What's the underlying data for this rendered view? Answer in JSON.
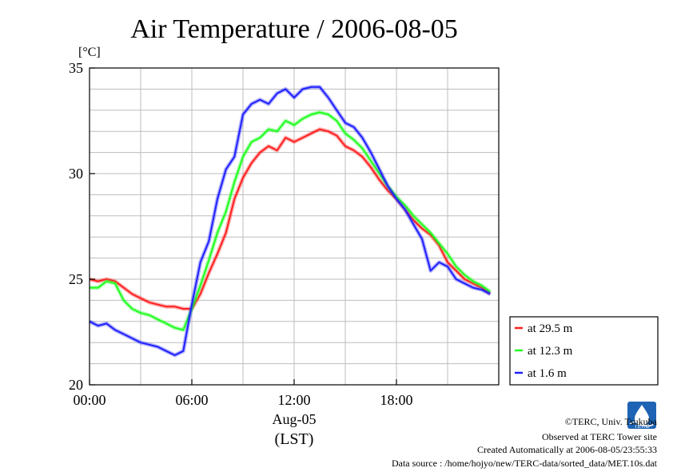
{
  "chart_data": {
    "type": "line",
    "title": "Air Temperature / 2006-08-05",
    "y_unit_label": "[°C]",
    "ylim": [
      20,
      35
    ],
    "yticks": [
      20,
      25,
      30,
      35
    ],
    "xlim": [
      0,
      24
    ],
    "xticks": [
      {
        "hour": 0,
        "label": "00:00"
      },
      {
        "hour": 6,
        "label": "06:00"
      },
      {
        "hour": 12,
        "label": "12:00"
      },
      {
        "hour": 18,
        "label": "18:00"
      }
    ],
    "x_date_label": "Aug-05",
    "x_axis_label": "(LST)",
    "grid": true,
    "legend_position": "right",
    "series": [
      {
        "name": "at 29.5 m",
        "color": "#ff2020",
        "x": [
          0,
          0.5,
          1,
          1.5,
          2,
          2.5,
          3,
          3.5,
          4,
          4.5,
          5,
          5.5,
          6,
          6.5,
          7,
          7.5,
          8,
          8.5,
          9,
          9.5,
          10,
          10.5,
          11,
          11.5,
          12,
          12.5,
          13,
          13.5,
          14,
          14.5,
          15,
          15.5,
          16,
          16.5,
          17,
          17.5,
          18,
          18.5,
          19,
          19.5,
          20,
          20.5,
          21,
          21.5,
          22,
          22.5,
          23,
          23.5
        ],
        "y": [
          25.0,
          24.9,
          25.0,
          24.9,
          24.6,
          24.3,
          24.1,
          23.9,
          23.8,
          23.7,
          23.7,
          23.6,
          23.6,
          24.3,
          25.3,
          26.2,
          27.2,
          28.8,
          29.8,
          30.5,
          31.0,
          31.3,
          31.1,
          31.7,
          31.5,
          31.7,
          31.9,
          32.1,
          32.0,
          31.8,
          31.3,
          31.1,
          30.8,
          30.3,
          29.7,
          29.2,
          28.8,
          28.3,
          27.8,
          27.4,
          27.1,
          26.6,
          25.8,
          25.4,
          25.0,
          24.8,
          24.6,
          24.3
        ]
      },
      {
        "name": "at 12.3 m",
        "color": "#20ff20",
        "x": [
          0,
          0.5,
          1,
          1.5,
          2,
          2.5,
          3,
          3.5,
          4,
          4.5,
          5,
          5.5,
          6,
          6.5,
          7,
          7.5,
          8,
          8.5,
          9,
          9.5,
          10,
          10.5,
          11,
          11.5,
          12,
          12.5,
          13,
          13.5,
          14,
          14.5,
          15,
          15.5,
          16,
          16.5,
          17,
          17.5,
          18,
          18.5,
          19,
          19.5,
          20,
          20.5,
          21,
          21.5,
          22,
          22.5,
          23,
          23.5
        ],
        "y": [
          24.6,
          24.6,
          24.9,
          24.8,
          24.0,
          23.6,
          23.4,
          23.3,
          23.1,
          22.9,
          22.7,
          22.6,
          23.6,
          24.7,
          25.9,
          27.2,
          28.2,
          29.6,
          30.8,
          31.5,
          31.7,
          32.1,
          32.0,
          32.5,
          32.3,
          32.6,
          32.8,
          32.9,
          32.8,
          32.5,
          31.9,
          31.6,
          31.2,
          30.6,
          30.0,
          29.4,
          28.9,
          28.5,
          28.0,
          27.6,
          27.2,
          26.7,
          26.2,
          25.6,
          25.2,
          24.9,
          24.7,
          24.4
        ]
      },
      {
        "name": "at 1.6 m",
        "color": "#2020ff",
        "x": [
          0,
          0.5,
          1,
          1.5,
          2,
          2.5,
          3,
          3.5,
          4,
          4.5,
          5,
          5.5,
          6,
          6.5,
          7,
          7.5,
          8,
          8.5,
          9,
          9.5,
          10,
          10.5,
          11,
          11.5,
          12,
          12.5,
          13,
          13.5,
          14,
          14.5,
          15,
          15.5,
          16,
          16.5,
          17,
          17.5,
          18,
          18.5,
          19,
          19.5,
          20,
          20.5,
          21,
          21.5,
          22,
          22.5,
          23,
          23.5
        ],
        "y": [
          23.0,
          22.8,
          22.9,
          22.6,
          22.4,
          22.2,
          22.0,
          21.9,
          21.8,
          21.6,
          21.4,
          21.6,
          23.8,
          25.8,
          26.8,
          28.8,
          30.2,
          30.8,
          32.8,
          33.3,
          33.5,
          33.3,
          33.8,
          34.0,
          33.6,
          34.0,
          34.1,
          34.1,
          33.6,
          33.0,
          32.4,
          32.2,
          31.7,
          31.0,
          30.2,
          29.4,
          28.8,
          28.3,
          27.6,
          26.9,
          25.4,
          25.8,
          25.6,
          25.0,
          24.8,
          24.6,
          24.5,
          24.3
        ]
      }
    ]
  },
  "footer": {
    "logo_text": "TERC",
    "copyright": "©TERC, Univ. Tsukuba",
    "observed": "Observed at TERC Tower site",
    "created": "Created Automatically at 2006-08-05/23:55:33",
    "source": "Data source : /home/hojyo/new/TERC-data/sorted_data/MET.10s.dat"
  }
}
